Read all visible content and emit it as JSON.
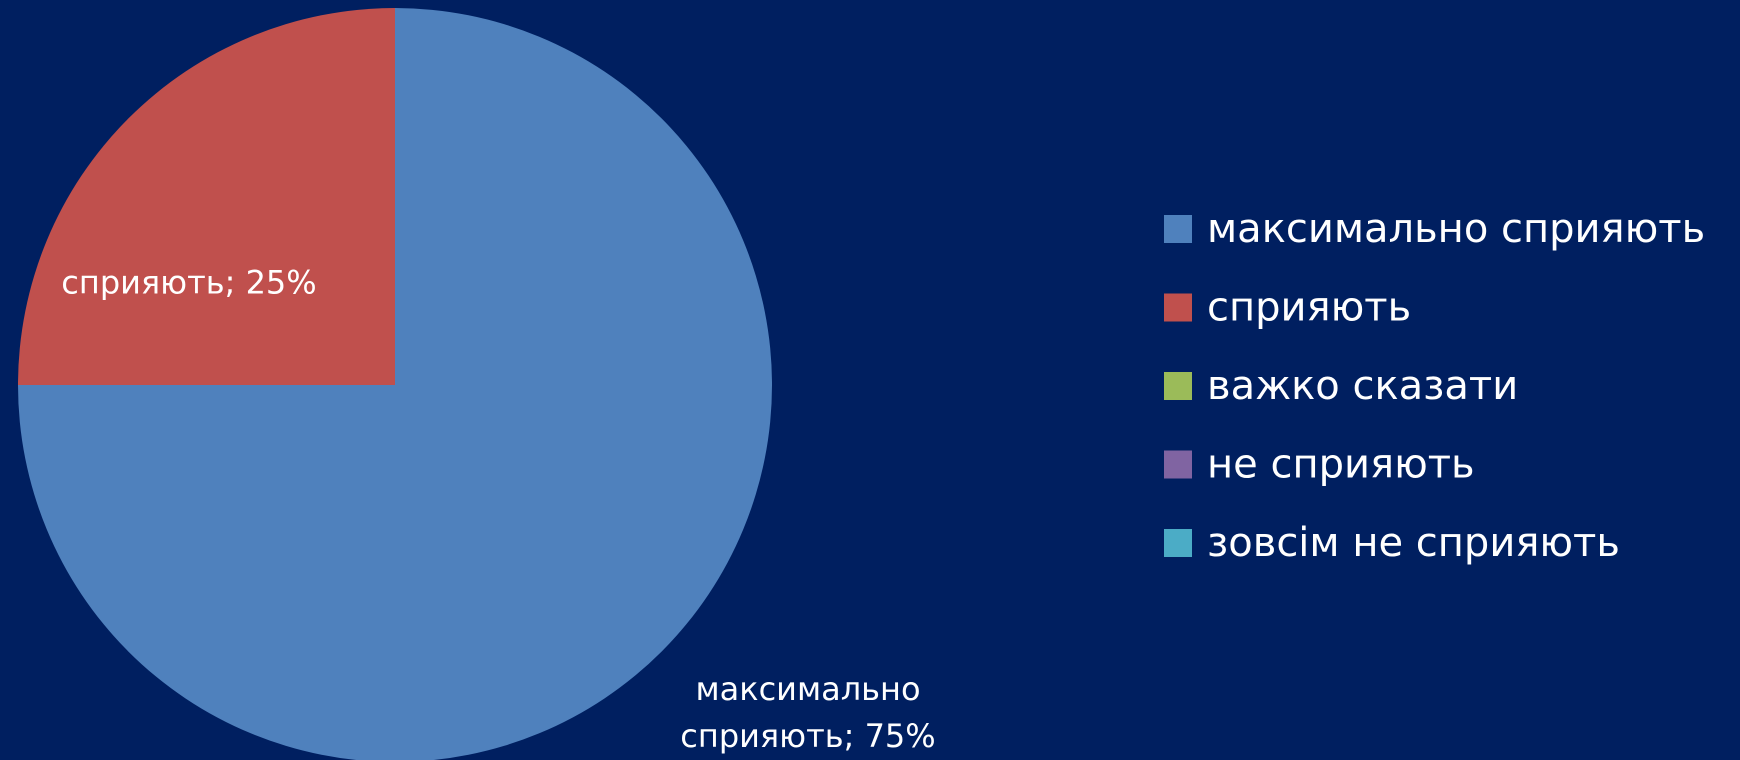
{
  "chart_data": {
    "type": "pie",
    "categories": [
      "максимально сприяють",
      "сприяють",
      "важко сказати",
      "не сприяють",
      "зовсім не сприяють"
    ],
    "values": [
      75,
      25,
      0,
      0,
      0
    ],
    "value_labels": [
      "максимально сприяють; 75%",
      "сприяють; 25%",
      null,
      null,
      null
    ],
    "colors": [
      "#4f81bd",
      "#c0504d",
      "#9bbb59",
      "#8064a2",
      "#4bacc6"
    ],
    "legend": "right"
  }
}
